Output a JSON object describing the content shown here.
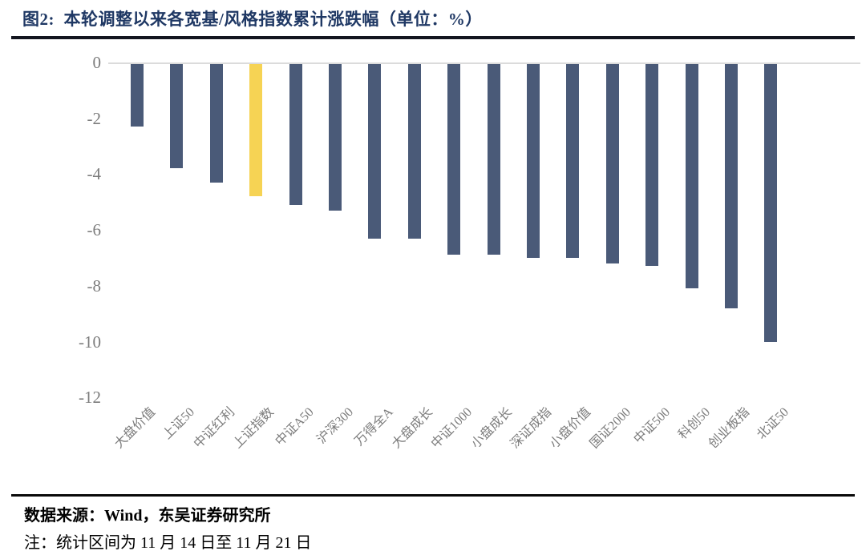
{
  "figure": {
    "title": "图2:  本轮调整以来各宽基/风格指数累计涨跌幅（单位：%）",
    "source": "数据来源：Wind，东吴证券研究所",
    "note": "注：统计区间为 11 月 14 日至 11 月 21 日"
  },
  "colors": {
    "bar": "#4A5A78",
    "highlight": "#F6D354",
    "title_text": "#1F3864",
    "axis_text": "#7C7C7C",
    "axis_line": "#DBDBDB",
    "divider": "#13151F"
  },
  "chart_data": {
    "type": "bar",
    "title": "本轮调整以来各宽基/风格指数累计涨跌幅",
    "unit": "%",
    "categories": [
      "大盘价值",
      "上证50",
      "中证红利",
      "上证指数",
      "中证A50",
      "沪深300",
      "万得全A",
      "大盘成长",
      "中证1000",
      "小盘成长",
      "深证成指",
      "小盘价值",
      "国证2000",
      "中证500",
      "科创50",
      "创业板指",
      "北证50"
    ],
    "values": [
      -2.3,
      -3.8,
      -4.3,
      -4.8,
      -5.1,
      -5.3,
      -6.3,
      -6.3,
      -6.9,
      -6.9,
      -7.0,
      -7.0,
      -7.2,
      -7.3,
      -8.1,
      -8.8,
      -10.0
    ],
    "highlight_index": 3,
    "highlighted_category": "上证指数",
    "xlabel": "",
    "ylabel": "",
    "ylim": [
      -12,
      0
    ],
    "yticks": [
      0,
      -2,
      -4,
      -6,
      -8,
      -10,
      -12
    ],
    "grid": "zero-axis-line-only",
    "legend": "none",
    "xlabel_rotation": 45
  }
}
